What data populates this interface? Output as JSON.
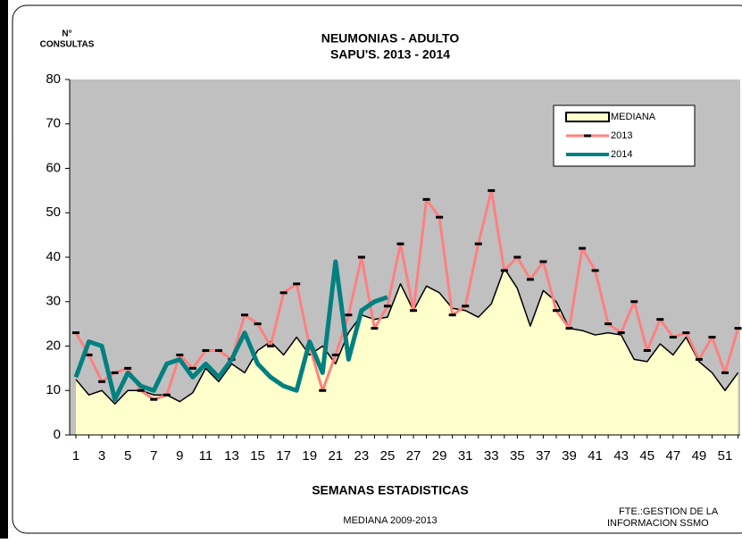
{
  "chart_data": {
    "type": "line",
    "title": [
      "NEUMONIAS - ADULTO",
      "SAPU'S.   2013 - 2014"
    ],
    "y_label": [
      "N°",
      "CONSULTAS"
    ],
    "x_label": "SEMANAS ESTADISTICAS",
    "notes": [
      "MEDIANA 2009-2013",
      "FTE.:GESTION DE LA",
      "INFORMACION SSMO"
    ],
    "categories": [
      1,
      null,
      3,
      null,
      5,
      null,
      7,
      null,
      9,
      null,
      11,
      null,
      13,
      null,
      15,
      null,
      17,
      null,
      19,
      null,
      21,
      null,
      23,
      null,
      25,
      null,
      27,
      null,
      29,
      null,
      31,
      null,
      33,
      null,
      35,
      null,
      37,
      null,
      39,
      null,
      41,
      null,
      43,
      null,
      45,
      null,
      47,
      null,
      49,
      null,
      51,
      null
    ],
    "series": [
      {
        "name": "MEDIANA",
        "style": "area",
        "color": "#ffffcc",
        "edge_color": "#000000",
        "values": [
          12.5,
          9,
          10,
          7,
          10,
          10,
          9,
          9,
          7.5,
          9.5,
          15,
          12,
          16,
          14,
          19,
          21,
          18,
          22,
          18,
          20,
          16,
          23,
          27,
          26,
          26.5,
          34,
          28,
          33.5,
          32,
          28.5,
          28,
          26.5,
          29.5,
          37.5,
          33,
          24.5,
          32.5,
          30,
          24,
          23.5,
          22.5,
          23,
          22.5,
          17,
          16.5,
          20.5,
          18,
          22,
          16.5,
          14,
          10,
          14
        ]
      },
      {
        "name": "2013",
        "style": "line",
        "color": "#ff8080",
        "marker_color": "#000000",
        "values": [
          23,
          18,
          12,
          14,
          15,
          10,
          8,
          9,
          18,
          15,
          19,
          19,
          17,
          27,
          25,
          20,
          32,
          34,
          20,
          10,
          18,
          27,
          40,
          24,
          29,
          43,
          28,
          53,
          49,
          27,
          29,
          43,
          55,
          37,
          40,
          35,
          39,
          28,
          24,
          42,
          37,
          25,
          23,
          30,
          19,
          26,
          22,
          23,
          17,
          22,
          14,
          24
        ]
      },
      {
        "name": "2014",
        "style": "line",
        "color": "#008080",
        "values": [
          13,
          21,
          20,
          8,
          14,
          11,
          10,
          16,
          17,
          13,
          16,
          13,
          17,
          23,
          16,
          13,
          11,
          10,
          21,
          14,
          39,
          17,
          28,
          30,
          31,
          null,
          null,
          null,
          null,
          null,
          null,
          null,
          null,
          null,
          null,
          null,
          null,
          null,
          null,
          null,
          null,
          null,
          null,
          null,
          null,
          null,
          null,
          null,
          null,
          null,
          null,
          null
        ]
      }
    ],
    "ylim": [
      0,
      80
    ],
    "yticks": [
      0,
      10,
      20,
      30,
      40,
      50,
      60,
      70,
      80
    ],
    "plot_background": "#c0c0c0",
    "grid": false,
    "legend": "upper-right"
  }
}
